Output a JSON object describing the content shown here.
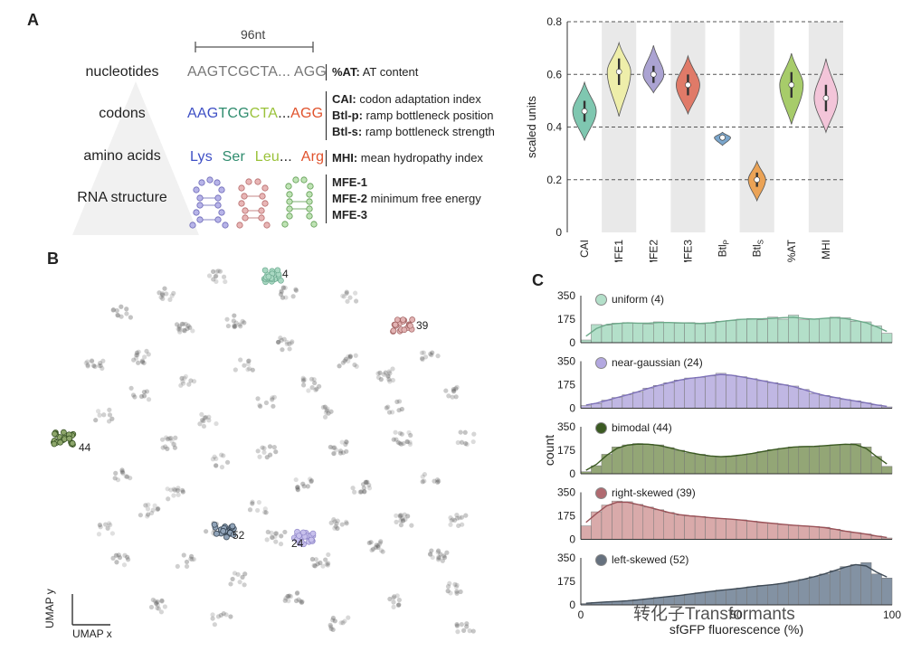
{
  "panelA": {
    "label": "A",
    "bracket_label": "96nt",
    "rows": [
      {
        "name": "nucleotides"
      },
      {
        "name": "codons"
      },
      {
        "name": "amino acids"
      },
      {
        "name": "RNA structure"
      }
    ],
    "nucleotide_seq": "AAGTCGCTA... AGG",
    "codon_seq": {
      "aag": "AAG",
      "tcg": "TCG",
      "cta": "CTA",
      "dots": "...",
      "agg": "AGG"
    },
    "aa_seq": {
      "lys": "Lys",
      "ser": "Ser",
      "leu": "Leu",
      "dots": "...",
      "arg": "Arg"
    },
    "desc": {
      "at_bold": "%AT:",
      "at_text": " AT content",
      "cai_bold": "CAI:",
      "cai_text": " codon adaptation index",
      "btlp_bold": "Btl-p:",
      "btlp_text": " ramp bottleneck position",
      "btls_bold": "Btl-s:",
      "btls_text": " ramp bottleneck strength",
      "mhi_bold": "MHI:",
      "mhi_text": " mean hydropathy index",
      "mfe1": "MFE-1",
      "mfe2": "MFE-2",
      "mfe2_text": " minimum free energy",
      "mfe3": "MFE-3"
    }
  },
  "violin_chart": {
    "ylabel": "scaled units",
    "yticks": [
      "0.8",
      "0.6",
      "0.4",
      "0.2",
      "0"
    ],
    "chart_data": {
      "type": "violin",
      "ylim": [
        0,
        0.8
      ],
      "grid": "dashed horizontal",
      "categories": [
        "CAI",
        "MFE1",
        "MFE2",
        "MFE3",
        "Btl_P",
        "Btl_S",
        "%AT",
        "MHI"
      ],
      "category_labels": [
        "CAI",
        "MFE1",
        "MFE2",
        "MFE3",
        "Btl",
        "Btl",
        "%AT",
        "MHI"
      ],
      "category_subscripts": [
        "",
        "",
        "",
        "",
        "P",
        "S",
        "",
        ""
      ],
      "medians": [
        0.46,
        0.61,
        0.6,
        0.56,
        0.36,
        0.2,
        0.56,
        0.51
      ],
      "ranges": [
        [
          0.35,
          0.57
        ],
        [
          0.44,
          0.72
        ],
        [
          0.53,
          0.71
        ],
        [
          0.45,
          0.67
        ],
        [
          0.33,
          0.38
        ],
        [
          0.12,
          0.27
        ],
        [
          0.41,
          0.68
        ],
        [
          0.38,
          0.66
        ]
      ],
      "colors": [
        "#7fc7b0",
        "#eeeeaa",
        "#aba3d2",
        "#e07a68",
        "#7aa6cc",
        "#eba356",
        "#a7cc6a",
        "#f3c5d9"
      ]
    }
  },
  "panelB": {
    "label": "B",
    "cluster_labels": [
      "4",
      "39",
      "44",
      "52",
      "24"
    ],
    "axis_y": "UMAP y",
    "axis_x": "UMAP x"
  },
  "panelC": {
    "label": "C",
    "ylabel": "count",
    "xlabel": "sfGFP fluorescence (%)",
    "xticks": [
      "0",
      "50",
      "100"
    ],
    "yticks": [
      "350",
      "175",
      "0"
    ],
    "chart_data": {
      "type": "histogram",
      "x_range": [
        0,
        100
      ],
      "ylim": [
        0,
        350
      ],
      "bins": 30,
      "series": [
        {
          "name": "uniform (4)",
          "color": "#b3dfc9",
          "values": [
            20,
            135,
            130,
            145,
            150,
            145,
            140,
            155,
            150,
            145,
            150,
            140,
            145,
            160,
            165,
            175,
            180,
            170,
            190,
            175,
            205,
            170,
            175,
            180,
            190,
            185,
            160,
            155,
            125,
            70
          ]
        },
        {
          "name": "near-gaussian (24)",
          "color": "#c0b7e3",
          "values": [
            20,
            35,
            60,
            80,
            100,
            120,
            150,
            170,
            190,
            210,
            225,
            230,
            240,
            260,
            245,
            235,
            220,
            205,
            190,
            175,
            165,
            140,
            110,
            95,
            80,
            65,
            55,
            40,
            25,
            10
          ]
        },
        {
          "name": "bimodal (44)",
          "color": "#93a676",
          "values": [
            15,
            60,
            145,
            200,
            215,
            225,
            220,
            215,
            195,
            175,
            155,
            145,
            130,
            125,
            130,
            140,
            150,
            165,
            180,
            190,
            200,
            205,
            200,
            210,
            215,
            220,
            225,
            200,
            130,
            55
          ]
        },
        {
          "name": "right-skewed (39)",
          "color": "#d9aaaa",
          "values": [
            100,
            205,
            255,
            285,
            280,
            260,
            240,
            220,
            200,
            180,
            175,
            170,
            160,
            155,
            150,
            145,
            135,
            125,
            120,
            110,
            105,
            100,
            95,
            90,
            75,
            60,
            50,
            40,
            25,
            10
          ]
        },
        {
          "name": "left-skewed (52)",
          "color": "#8392a3",
          "values": [
            10,
            18,
            22,
            26,
            30,
            38,
            45,
            55,
            62,
            70,
            80,
            90,
            100,
            110,
            115,
            125,
            135,
            145,
            150,
            160,
            175,
            190,
            210,
            230,
            255,
            285,
            300,
            315,
            230,
            200
          ]
        }
      ]
    }
  },
  "watermark": "转化子Transformants"
}
